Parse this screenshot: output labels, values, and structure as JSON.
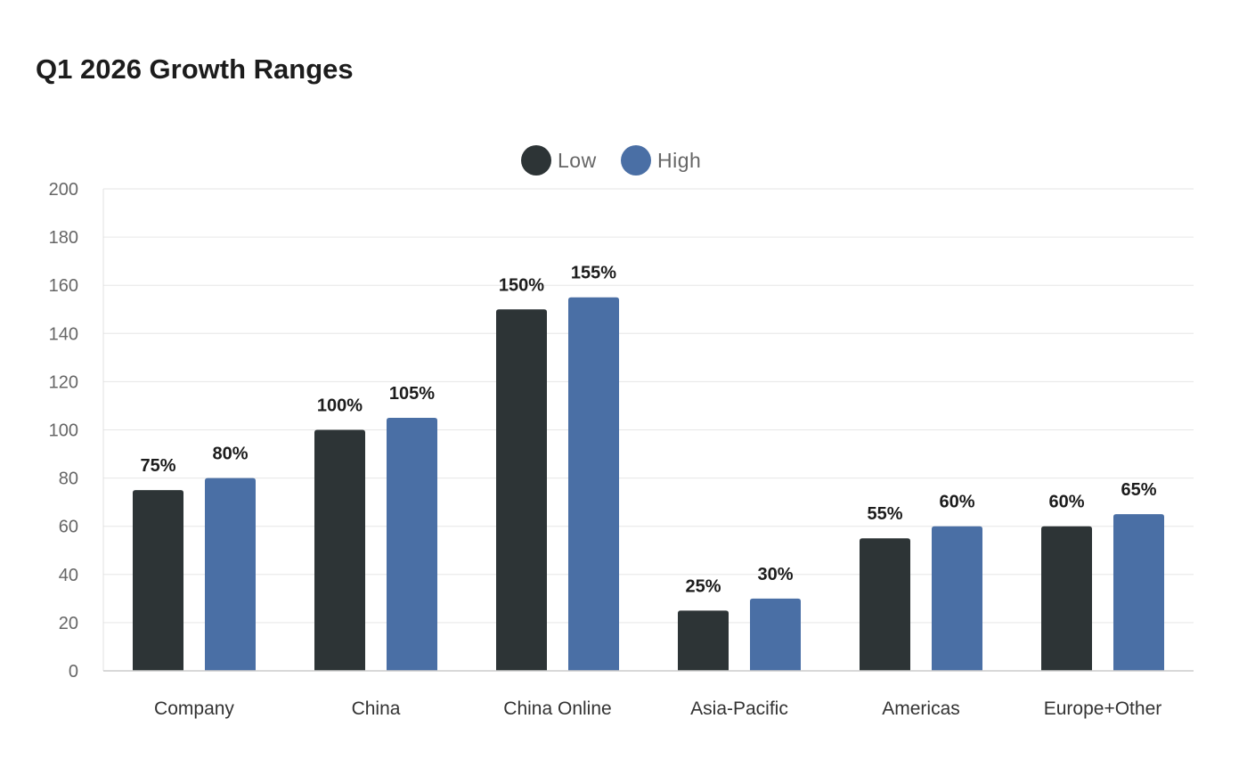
{
  "chart_data": {
    "type": "bar",
    "title": "Q1 2026 Growth Ranges",
    "categories": [
      "Company",
      "China",
      "China Online",
      "Asia-Pacific",
      "Americas",
      "Europe+Other"
    ],
    "series": [
      {
        "name": "Low",
        "color": "#2d3436",
        "values": [
          75,
          100,
          150,
          25,
          55,
          60
        ],
        "labels": [
          "75%",
          "100%",
          "150%",
          "25%",
          "55%",
          "60%"
        ]
      },
      {
        "name": "High",
        "color": "#4a6fa5",
        "values": [
          80,
          105,
          155,
          30,
          60,
          65
        ],
        "labels": [
          "80%",
          "105%",
          "155%",
          "30%",
          "60%",
          "65%"
        ]
      }
    ],
    "ylim": [
      0,
      200
    ],
    "yticks": [
      "0",
      "20",
      "40",
      "60",
      "80",
      "100",
      "120",
      "140",
      "160",
      "180",
      "200"
    ],
    "xlabel": "",
    "ylabel": "",
    "grid": true,
    "legend_position": "top-center"
  }
}
